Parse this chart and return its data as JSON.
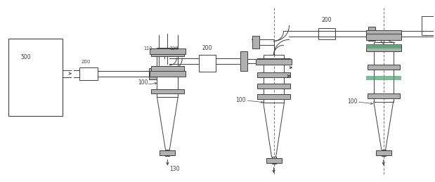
{
  "bg_color": "#ffffff",
  "line_color": "#404040",
  "gray_fill": "#b0b0b0",
  "green_fill": "#4a9e6b",
  "fig_width": 6.19,
  "fig_height": 2.59,
  "dpi": 100
}
